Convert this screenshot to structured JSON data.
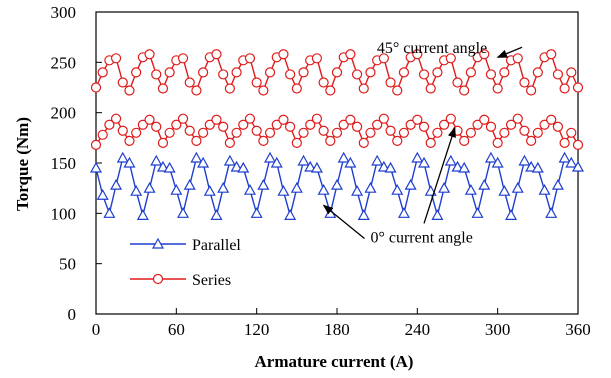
{
  "chart_data": {
    "type": "line",
    "title": "",
    "xlabel": "Armature current (A)",
    "ylabel": "Torque (Nm)",
    "xlim": [
      0,
      360
    ],
    "ylim": [
      0,
      300
    ],
    "xticks": [
      0,
      60,
      120,
      180,
      240,
      300,
      360
    ],
    "yticks": [
      0,
      50,
      100,
      150,
      200,
      250,
      300
    ],
    "grid": false,
    "legend_position": "lower-left",
    "series": [
      {
        "name": "Parallel",
        "color": "#1f3fcf",
        "marker": "triangle",
        "x": [
          0,
          5,
          10,
          15,
          20,
          25,
          30,
          35,
          40,
          45,
          50,
          55,
          60,
          65,
          70,
          75,
          80,
          85,
          90,
          95,
          100,
          105,
          110,
          115,
          120,
          125,
          130,
          135,
          140,
          145,
          150,
          155,
          160,
          165,
          170,
          175,
          180,
          185,
          190,
          195,
          200,
          205,
          210,
          215,
          220,
          225,
          230,
          235,
          240,
          245,
          250,
          255,
          260,
          265,
          270,
          275,
          280,
          285,
          290,
          295,
          300,
          305,
          310,
          315,
          320,
          325,
          330,
          335,
          340,
          345,
          350,
          355,
          360
        ],
        "y": [
          145,
          118,
          100,
          128,
          155,
          150,
          122,
          98,
          125,
          152,
          146,
          145,
          123,
          100,
          128,
          155,
          150,
          122,
          98,
          125,
          152,
          146,
          145,
          123,
          100,
          128,
          155,
          150,
          122,
          98,
          125,
          152,
          146,
          145,
          123,
          100,
          128,
          155,
          150,
          122,
          98,
          125,
          152,
          146,
          145,
          123,
          100,
          128,
          155,
          150,
          122,
          98,
          125,
          152,
          146,
          145,
          123,
          100,
          128,
          155,
          150,
          122,
          98,
          125,
          152,
          146,
          145,
          123,
          100,
          128,
          155,
          150,
          146
        ]
      },
      {
        "name": "Series",
        "color": "#e01a1a",
        "marker": "circle",
        "x": [
          0,
          5,
          10,
          15,
          20,
          25,
          30,
          35,
          40,
          45,
          50,
          55,
          60,
          65,
          70,
          75,
          80,
          85,
          90,
          95,
          100,
          105,
          110,
          115,
          120,
          125,
          130,
          135,
          140,
          145,
          150,
          155,
          160,
          165,
          170,
          175,
          180,
          185,
          190,
          195,
          200,
          205,
          210,
          215,
          220,
          225,
          230,
          235,
          240,
          245,
          250,
          255,
          260,
          265,
          270,
          275,
          280,
          285,
          290,
          295,
          300,
          305,
          310,
          315,
          320,
          325,
          330,
          335,
          340,
          345,
          350,
          355,
          360
        ],
        "y_bottom": [
          168,
          178,
          188,
          194,
          182,
          172,
          180,
          188,
          193,
          186,
          170,
          180,
          188,
          194,
          182,
          172,
          180,
          188,
          193,
          186,
          170,
          180,
          188,
          194,
          182,
          172,
          180,
          188,
          193,
          186,
          170,
          180,
          188,
          194,
          182,
          172,
          180,
          188,
          193,
          186,
          170,
          180,
          188,
          194,
          182,
          172,
          180,
          188,
          193,
          186,
          170,
          180,
          188,
          194,
          182,
          172,
          180,
          188,
          193,
          186,
          170,
          180,
          188,
          194,
          182,
          172,
          180,
          188,
          193,
          186,
          170,
          180,
          168
        ],
        "y_top": [
          225,
          240,
          252,
          254,
          230,
          222,
          240,
          255,
          258,
          238,
          224,
          240,
          252,
          254,
          230,
          222,
          240,
          255,
          258,
          238,
          224,
          240,
          252,
          254,
          230,
          222,
          240,
          255,
          258,
          238,
          224,
          240,
          252,
          254,
          230,
          222,
          240,
          255,
          258,
          238,
          224,
          240,
          252,
          254,
          230,
          222,
          240,
          255,
          258,
          238,
          224,
          240,
          252,
          254,
          230,
          222,
          240,
          255,
          258,
          238,
          224,
          240,
          252,
          254,
          230,
          222,
          240,
          255,
          258,
          238,
          224,
          240,
          225
        ]
      }
    ],
    "annotations": [
      {
        "text": "45° current angle",
        "label_at": [
          251,
          265
        ],
        "arrow_to": [
          300,
          255
        ]
      },
      {
        "text": "0° current angle",
        "label_at": [
          205,
          77
        ],
        "arrow_from": [
          245,
          90
        ],
        "arrow_to_upper": [
          268,
          185
        ],
        "arrow_to_lower": [
          170,
          108
        ]
      }
    ]
  }
}
